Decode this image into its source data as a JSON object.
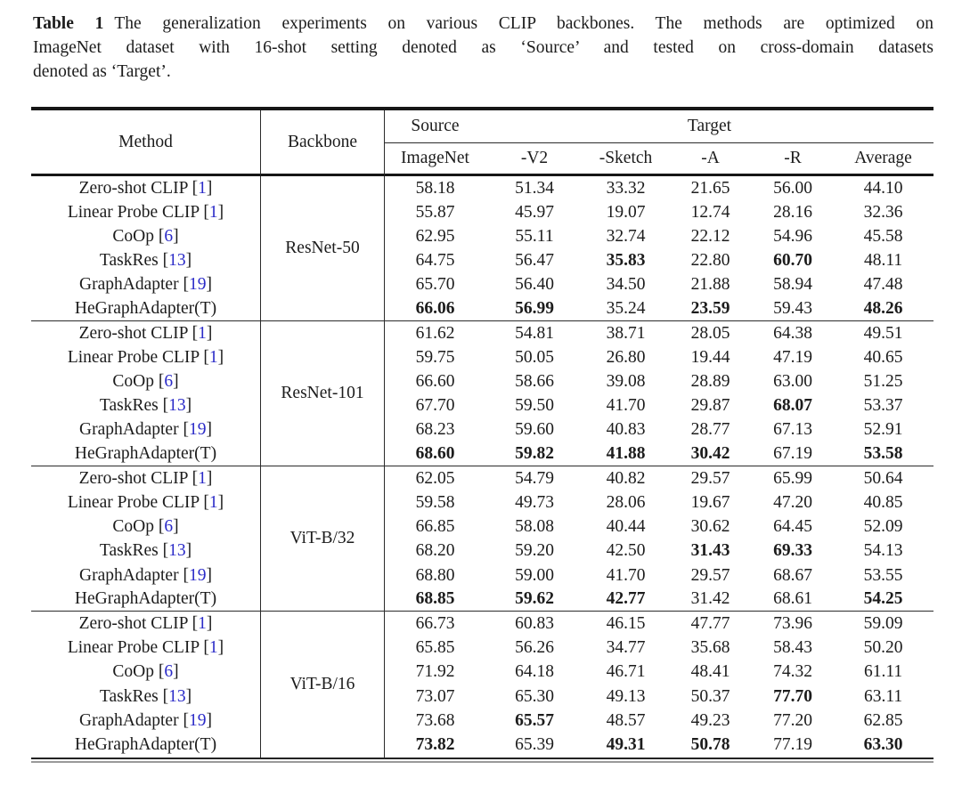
{
  "caption": {
    "label": "Table 1",
    "lines": [
      "The generalization experiments on various CLIP backbones. The methods are optimized on",
      "ImageNet dataset with 16-shot setting denoted as ‘Source’ and tested on cross-domain datasets",
      "denoted as ‘Target’."
    ]
  },
  "colors": {
    "citation": "#2b2bc8",
    "text": "#1c1c1c",
    "rule": "#161616"
  },
  "table": {
    "headers": {
      "method": "Method",
      "backbone": "Backbone",
      "source": "Source",
      "target": "Target",
      "columns": [
        "ImageNet",
        "-V2",
        "-Sketch",
        "-A",
        "-R",
        "Average"
      ]
    },
    "groups": [
      {
        "backbone": "ResNet-50",
        "rows": [
          {
            "method": "Zero-shot CLIP",
            "cite": "1",
            "values": [
              "58.18",
              "51.34",
              "33.32",
              "21.65",
              "56.00",
              "44.10"
            ],
            "bold": []
          },
          {
            "method": "Linear Probe CLIP",
            "cite": "1",
            "values": [
              "55.87",
              "45.97",
              "19.07",
              "12.74",
              "28.16",
              "32.36"
            ],
            "bold": []
          },
          {
            "method": "CoOp",
            "cite": "6",
            "values": [
              "62.95",
              "55.11",
              "32.74",
              "22.12",
              "54.96",
              "45.58"
            ],
            "bold": []
          },
          {
            "method": "TaskRes",
            "cite": "13",
            "values": [
              "64.75",
              "56.47",
              "35.83",
              "22.80",
              "60.70",
              "48.11"
            ],
            "bold": [
              2,
              4
            ]
          },
          {
            "method": "GraphAdapter",
            "cite": "19",
            "values": [
              "65.70",
              "56.40",
              "34.50",
              "21.88",
              "58.94",
              "47.48"
            ],
            "bold": []
          },
          {
            "method": "HeGraphAdapter(T)",
            "cite": null,
            "values": [
              "66.06",
              "56.99",
              "35.24",
              "23.59",
              "59.43",
              "48.26"
            ],
            "bold": [
              0,
              1,
              3,
              5
            ]
          }
        ]
      },
      {
        "backbone": "ResNet-101",
        "rows": [
          {
            "method": "Zero-shot CLIP",
            "cite": "1",
            "values": [
              "61.62",
              "54.81",
              "38.71",
              "28.05",
              "64.38",
              "49.51"
            ],
            "bold": []
          },
          {
            "method": "Linear Probe CLIP",
            "cite": "1",
            "values": [
              "59.75",
              "50.05",
              "26.80",
              "19.44",
              "47.19",
              "40.65"
            ],
            "bold": []
          },
          {
            "method": "CoOp",
            "cite": "6",
            "values": [
              "66.60",
              "58.66",
              "39.08",
              "28.89",
              "63.00",
              "51.25"
            ],
            "bold": []
          },
          {
            "method": "TaskRes",
            "cite": "13",
            "values": [
              "67.70",
              "59.50",
              "41.70",
              "29.87",
              "68.07",
              "53.37"
            ],
            "bold": [
              4
            ]
          },
          {
            "method": "GraphAdapter",
            "cite": "19",
            "values": [
              "68.23",
              "59.60",
              "40.83",
              "28.77",
              "67.13",
              "52.91"
            ],
            "bold": []
          },
          {
            "method": "HeGraphAdapter(T)",
            "cite": null,
            "values": [
              "68.60",
              "59.82",
              "41.88",
              "30.42",
              "67.19",
              "53.58"
            ],
            "bold": [
              0,
              1,
              2,
              3,
              5
            ]
          }
        ]
      },
      {
        "backbone": "ViT-B/32",
        "rows": [
          {
            "method": "Zero-shot CLIP",
            "cite": "1",
            "values": [
              "62.05",
              "54.79",
              "40.82",
              "29.57",
              "65.99",
              "50.64"
            ],
            "bold": []
          },
          {
            "method": "Linear Probe CLIP",
            "cite": "1",
            "values": [
              "59.58",
              "49.73",
              "28.06",
              "19.67",
              "47.20",
              "40.85"
            ],
            "bold": []
          },
          {
            "method": "CoOp",
            "cite": "6",
            "values": [
              "66.85",
              "58.08",
              "40.44",
              "30.62",
              "64.45",
              "52.09"
            ],
            "bold": []
          },
          {
            "method": "TaskRes",
            "cite": "13",
            "values": [
              "68.20",
              "59.20",
              "42.50",
              "31.43",
              "69.33",
              "54.13"
            ],
            "bold": [
              3,
              4
            ]
          },
          {
            "method": "GraphAdapter",
            "cite": "19",
            "values": [
              "68.80",
              "59.00",
              "41.70",
              "29.57",
              "68.67",
              "53.55"
            ],
            "bold": []
          },
          {
            "method": "HeGraphAdapter(T)",
            "cite": null,
            "values": [
              "68.85",
              "59.62",
              "42.77",
              "31.42",
              "68.61",
              "54.25"
            ],
            "bold": [
              0,
              1,
              2,
              5
            ]
          }
        ]
      },
      {
        "backbone": "ViT-B/16",
        "rows": [
          {
            "method": "Zero-shot CLIP",
            "cite": "1",
            "values": [
              "66.73",
              "60.83",
              "46.15",
              "47.77",
              "73.96",
              "59.09"
            ],
            "bold": []
          },
          {
            "method": "Linear Probe CLIP",
            "cite": "1",
            "values": [
              "65.85",
              "56.26",
              "34.77",
              "35.68",
              "58.43",
              "50.20"
            ],
            "bold": []
          },
          {
            "method": "CoOp",
            "cite": "6",
            "values": [
              "71.92",
              "64.18",
              "46.71",
              "48.41",
              "74.32",
              "61.11"
            ],
            "bold": []
          },
          {
            "method": "TaskRes",
            "cite": "13",
            "values": [
              "73.07",
              "65.30",
              "49.13",
              "50.37",
              "77.70",
              "63.11"
            ],
            "bold": [
              4
            ]
          },
          {
            "method": "GraphAdapter",
            "cite": "19",
            "values": [
              "73.68",
              "65.57",
              "48.57",
              "49.23",
              "77.20",
              "62.85"
            ],
            "bold": [
              1
            ]
          },
          {
            "method": "HeGraphAdapter(T)",
            "cite": null,
            "values": [
              "73.82",
              "65.39",
              "49.31",
              "50.78",
              "77.19",
              "63.30"
            ],
            "bold": [
              0,
              2,
              3,
              5
            ]
          }
        ]
      }
    ]
  }
}
